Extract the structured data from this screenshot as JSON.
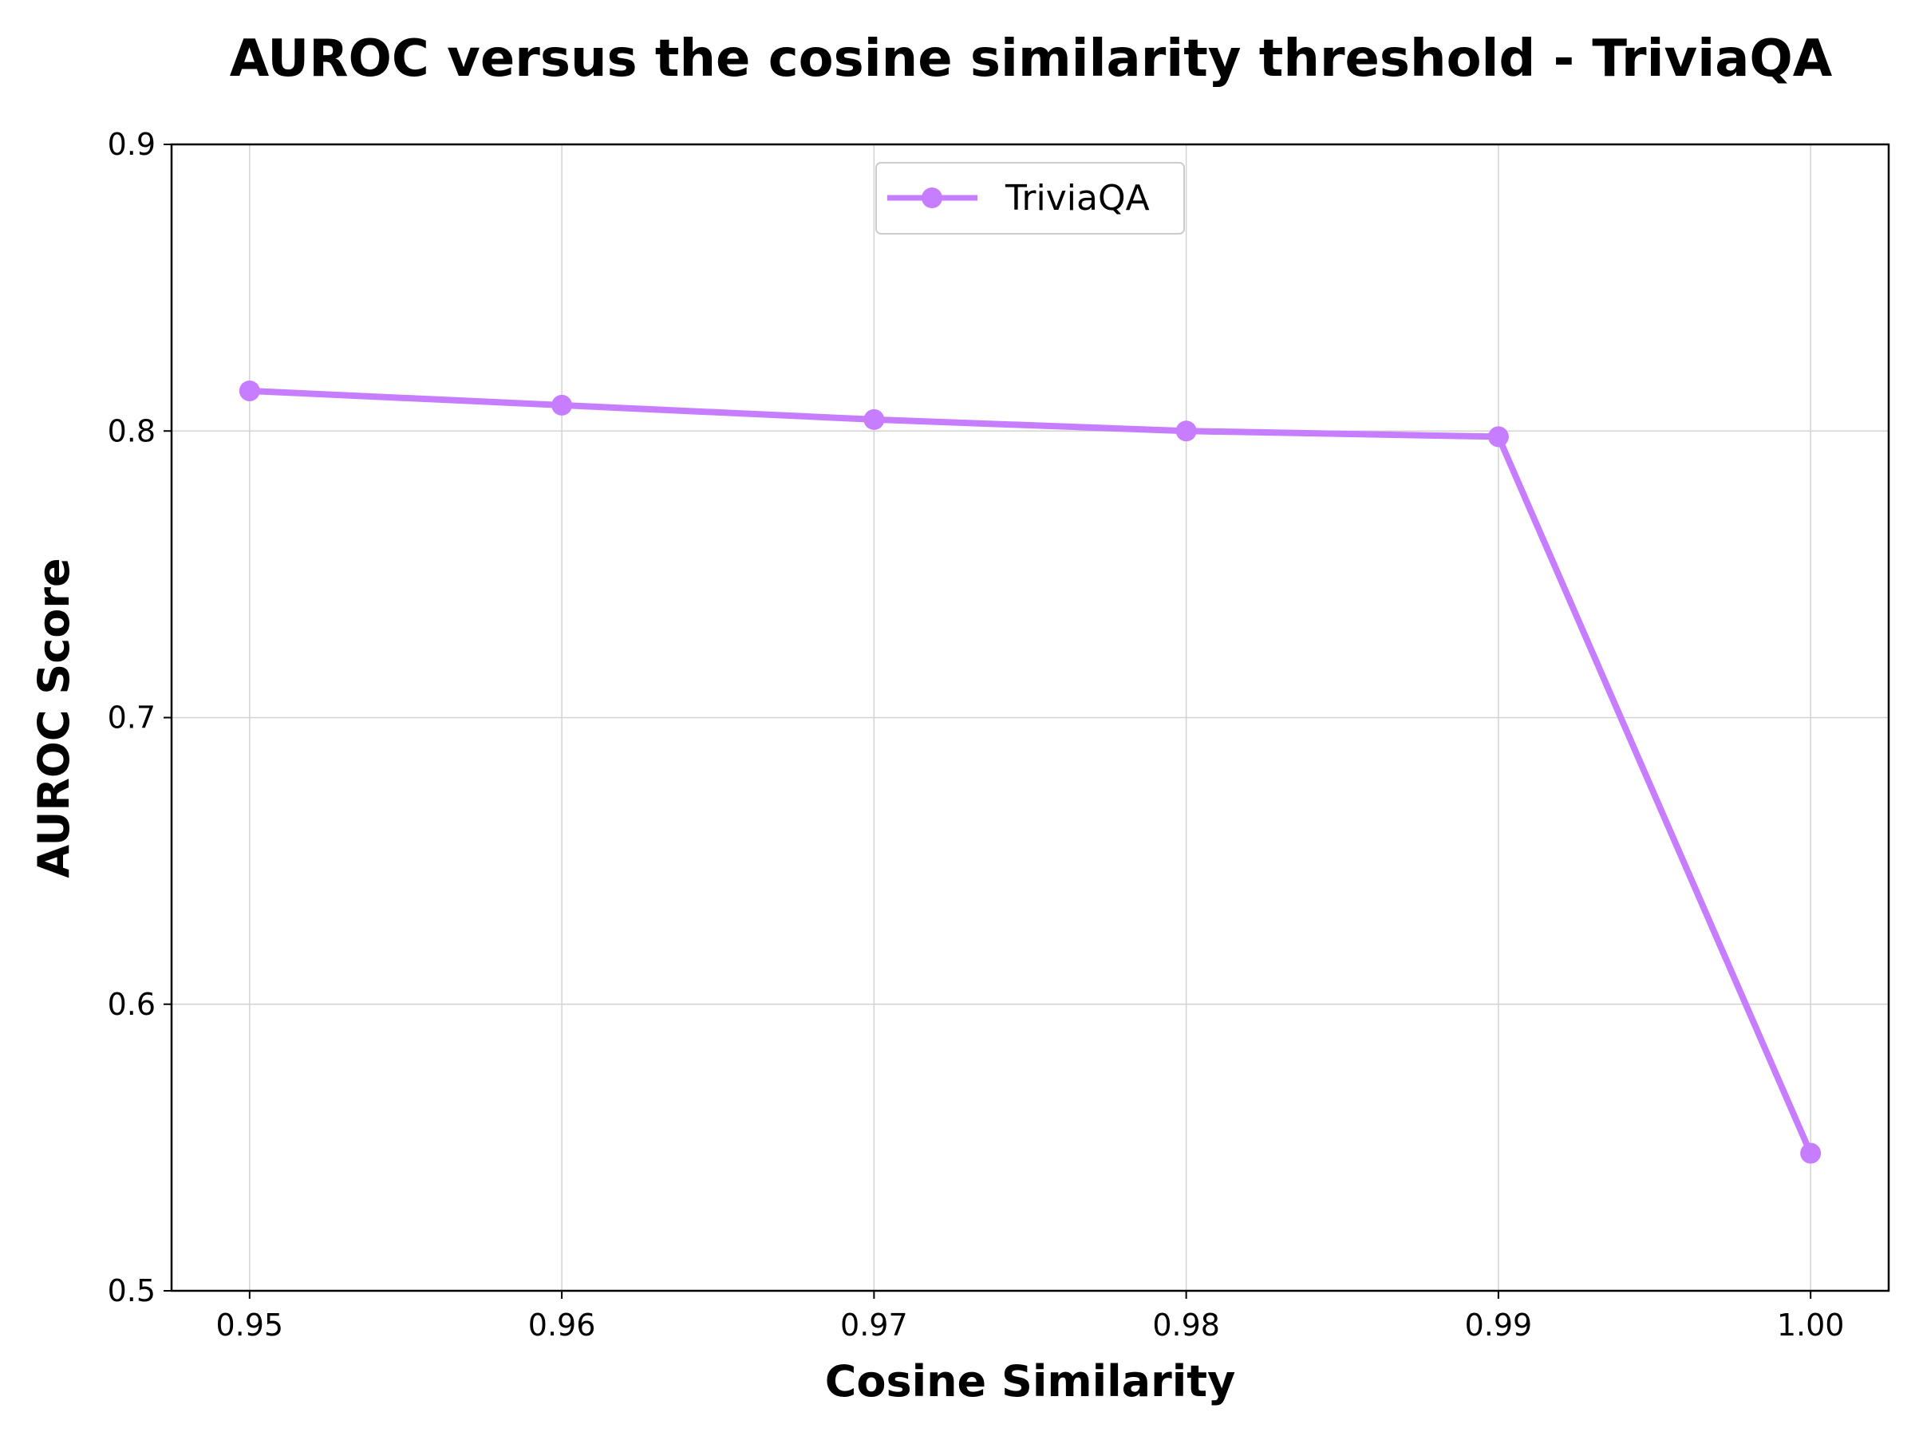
{
  "chart_data": {
    "type": "line",
    "title": "AUROC versus the cosine similarity threshold - TriviaQA",
    "xlabel": "Cosine Similarity",
    "ylabel": "AUROC Score",
    "x": [
      0.95,
      0.96,
      0.97,
      0.98,
      0.99,
      1.0
    ],
    "x_tick_labels": [
      "0.95",
      "0.96",
      "0.97",
      "0.98",
      "0.99",
      "1.00"
    ],
    "y_ticks": [
      0.5,
      0.6,
      0.7,
      0.8,
      0.9
    ],
    "y_tick_labels": [
      "0.5",
      "0.6",
      "0.7",
      "0.8",
      "0.9"
    ],
    "xlim": [
      0.9475,
      1.0025
    ],
    "ylim": [
      0.5,
      0.9
    ],
    "grid": true,
    "legend_position": "upper-center",
    "series": [
      {
        "name": "TriviaQA",
        "color": "#c77dff",
        "marker": "circle",
        "values": [
          0.814,
          0.809,
          0.804,
          0.8,
          0.798,
          0.548
        ]
      }
    ]
  }
}
